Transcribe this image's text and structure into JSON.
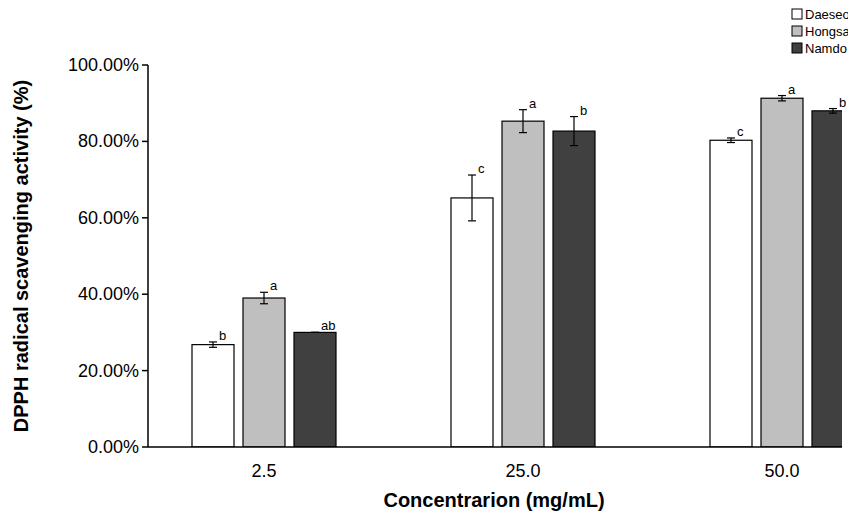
{
  "chart_data": {
    "type": "bar",
    "x_label": "Concentrarion (mg/mL)",
    "y_label": "DPPH radical scavenging activity (%)",
    "categories": [
      "2.5",
      "25.0",
      "50.0"
    ],
    "series": [
      {
        "name": "Daeseo",
        "color": "#ffffff",
        "values": [
          26.8,
          65.2,
          80.3
        ],
        "errors": [
          0.7,
          6.0,
          0.6
        ],
        "annotations": [
          "b",
          "c",
          "c"
        ]
      },
      {
        "name": "Hongsan",
        "color": "#bfbfbf",
        "values": [
          39.0,
          85.3,
          91.3
        ],
        "errors": [
          1.5,
          3.0,
          0.7
        ],
        "annotations": [
          "a",
          "a",
          "a"
        ]
      },
      {
        "name": "Namdo",
        "color": "#404040",
        "values": [
          30.0,
          82.7,
          88.0
        ],
        "errors": [
          0.0,
          3.8,
          0.6
        ],
        "annotations": [
          "ab",
          "b",
          "b"
        ]
      }
    ],
    "ylim": [
      0,
      100
    ],
    "yticks": [
      {
        "value": 0,
        "label": "0.00%"
      },
      {
        "value": 20,
        "label": "20.00%"
      },
      {
        "value": 40,
        "label": "40.00%"
      },
      {
        "value": 60,
        "label": "60.00%"
      },
      {
        "value": 80,
        "label": "80.00%"
      },
      {
        "value": 100,
        "label": "100.00%"
      }
    ],
    "grid": false,
    "legend": "top-right"
  }
}
